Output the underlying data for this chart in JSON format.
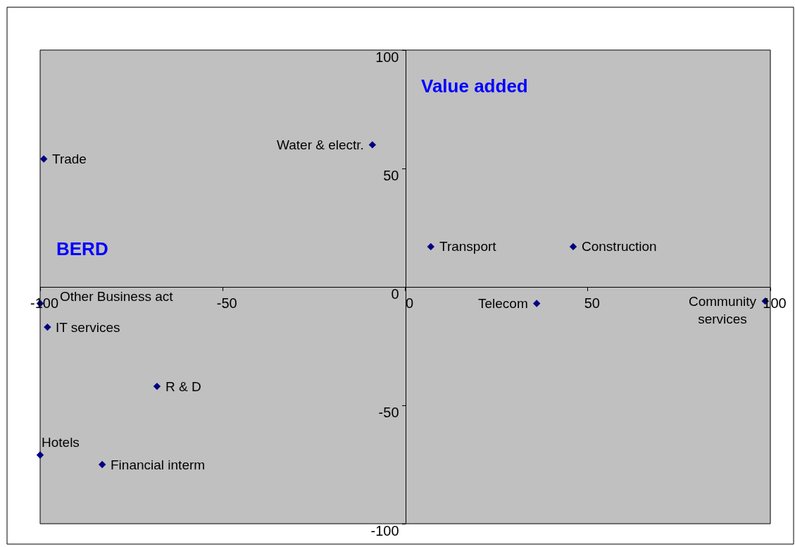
{
  "chart_data": {
    "type": "scatter",
    "x": [
      -99,
      -9,
      7,
      46,
      36,
      98.6,
      -100,
      -98,
      -68,
      -100,
      -83
    ],
    "series": [
      {
        "color": "#000080",
        "values": [
          54,
          60,
          17,
          17,
          -7,
          -6,
          -7,
          -17,
          -42,
          -71,
          -75
        ]
      }
    ],
    "xlim": [
      -100,
      100
    ],
    "ylim": [
      -100,
      100
    ],
    "xticks": [
      -100,
      -50,
      0,
      50,
      100
    ],
    "yticks": [
      -100,
      -50,
      0,
      50,
      100
    ],
    "grid": false,
    "legend": false,
    "marker": "diamond",
    "annotations": [
      {
        "text": "Trade",
        "x": -99,
        "y": 54
      },
      {
        "text": "Water & electr.",
        "x": -9,
        "y": 60
      },
      {
        "text": "Transport",
        "x": 7,
        "y": 17
      },
      {
        "text": "Construction",
        "x": 46,
        "y": 17
      },
      {
        "text": "Telecom",
        "x": 36,
        "y": -7
      },
      {
        "text": "Community\nservices",
        "x": 98.6,
        "y": -6
      },
      {
        "text": "Other Business act",
        "x": -100,
        "y": -7
      },
      {
        "text": "IT services",
        "x": -98,
        "y": -17
      },
      {
        "text": "R & D",
        "x": -68,
        "y": -42
      },
      {
        "text": "Hotels",
        "x": -100,
        "y": -71
      },
      {
        "text": "Financial interm",
        "x": -83,
        "y": -75
      },
      "Value added",
      "BERD"
    ]
  }
}
